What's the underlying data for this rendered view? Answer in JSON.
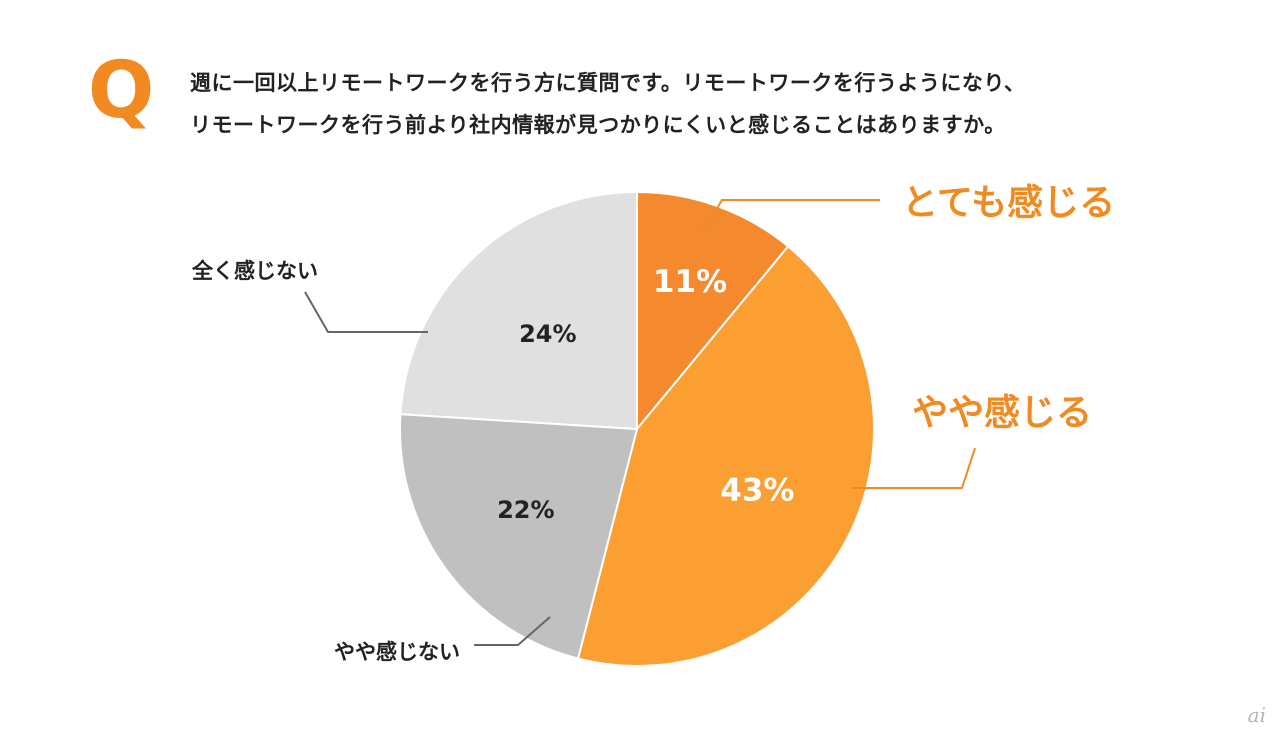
{
  "header": {
    "q_mark": "Q",
    "question_line1": "週に一回以上リモートワークを行う方に質問です。リモートワークを行うようになり、",
    "question_line2": "リモートワークを行う前より社内情報が見つかりにくいと感じることはありますか。"
  },
  "chart_data": {
    "type": "pie",
    "title": "",
    "start_angle_deg": 0,
    "direction": "clockwise",
    "slices": [
      {
        "label": "とても感じる",
        "value": 11,
        "display": "11%",
        "color": "#f4892e",
        "label_color": "#f28a22",
        "value_color": "#ffffff",
        "emphasis": true
      },
      {
        "label": "やや感じる",
        "value": 43,
        "display": "43%",
        "color": "#fb9f33",
        "label_color": "#f28a22",
        "value_color": "#ffffff",
        "emphasis": true
      },
      {
        "label": "やや感じない",
        "value": 22,
        "display": "22%",
        "color": "#c0c0c0",
        "label_color": "#222222",
        "value_color": "#222222",
        "emphasis": false
      },
      {
        "label": "全く感じない",
        "value": 24,
        "display": "24%",
        "color": "#e0e0e0",
        "label_color": "#222222",
        "value_color": "#222222",
        "emphasis": false
      }
    ]
  },
  "watermark": {
    "text": "ai"
  }
}
